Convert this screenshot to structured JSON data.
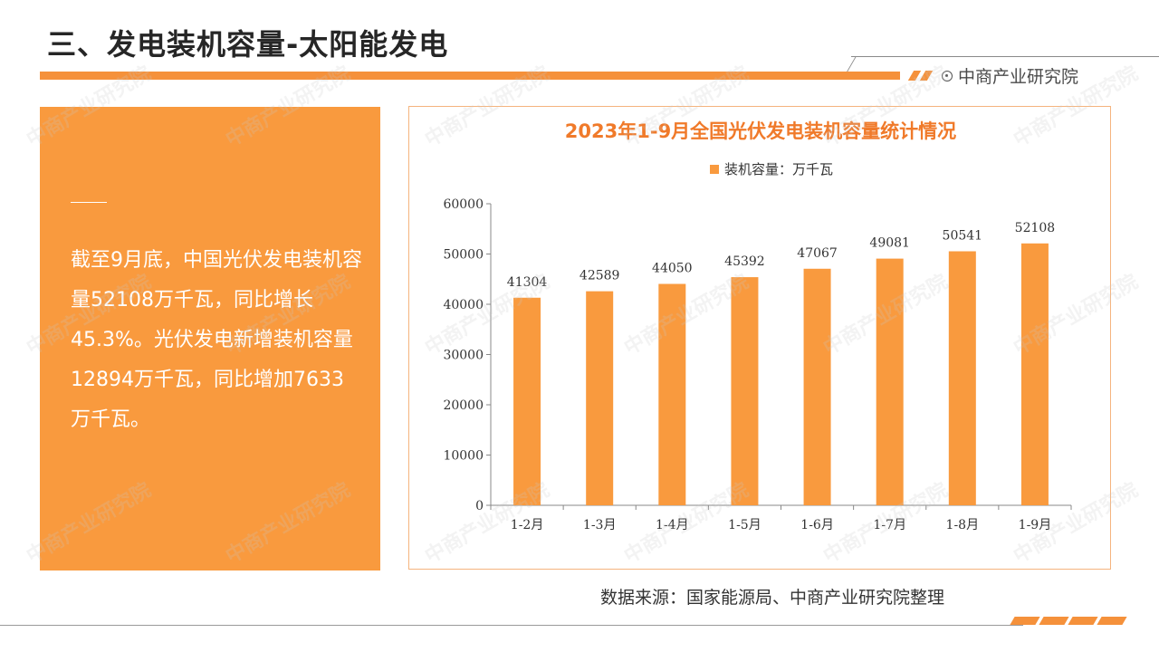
{
  "page": {
    "title": "三、发电装机容量-太阳能发电",
    "brand": "中商产业研究院",
    "summary": "截至9月底，中国光伏发电装机容量52108万千瓦，同比增长45.3%。光伏发电新增装机容量12894万千瓦，同比增加7633万千瓦。",
    "source": "数据来源：国家能源局、中商产业研究院整理",
    "watermark": "中商产业研究院"
  },
  "colors": {
    "accent": "#f5913b",
    "panel": "#f99a3e",
    "bar": "#f99a3e",
    "title": "#f07a2a"
  },
  "chart_data": {
    "type": "bar",
    "title": "2023年1-9月全国光伏发电装机容量统计情况",
    "categories": [
      "1-2月",
      "1-3月",
      "1-4月",
      "1-5月",
      "1-6月",
      "1-7月",
      "1-8月",
      "1-9月"
    ],
    "series": [
      {
        "name": "装机容量：万千瓦",
        "values": [
          41304,
          42589,
          44050,
          45392,
          47067,
          49081,
          50541,
          52108
        ]
      }
    ],
    "ylim": [
      0,
      60000
    ],
    "yticks": [
      0,
      10000,
      20000,
      30000,
      40000,
      50000,
      60000
    ],
    "legend": "top-center",
    "grid": false
  }
}
